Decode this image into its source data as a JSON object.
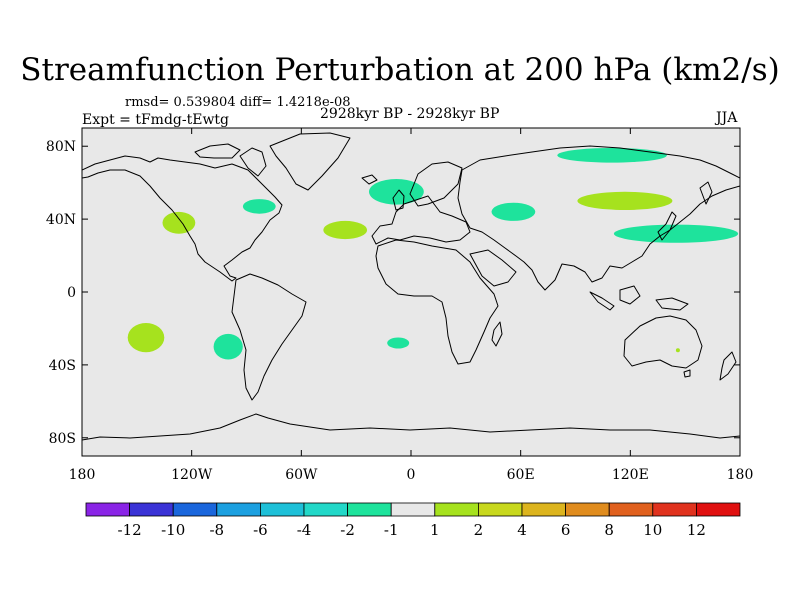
{
  "title": "Streamfunction Perturbation at 200 hPa (km2/s)",
  "stats": "rmsd= 0.539804 diff= 1.4218e-08",
  "expt": "Expt = tFmdg-tEwtg",
  "period": "2928kyr BP - 2928kyr BP",
  "season": "JJA",
  "colors": {
    "ocean": "#e8e8e8",
    "coast": "#000000",
    "neg": "#1ee39c",
    "pos": "#a6e21e"
  },
  "chart_data": {
    "type": "map",
    "projection": "cylindrical-equidistant",
    "lon_range": [
      -180,
      180
    ],
    "lat_range": [
      -90,
      90
    ],
    "y_ticks": [
      {
        "lat": 80,
        "label": "80N"
      },
      {
        "lat": 40,
        "label": "40N"
      },
      {
        "lat": 0,
        "label": "0"
      },
      {
        "lat": -40,
        "label": "40S"
      },
      {
        "lat": -80,
        "label": "80S"
      }
    ],
    "x_ticks": [
      {
        "lon": -180,
        "label": "180"
      },
      {
        "lon": -120,
        "label": "120W"
      },
      {
        "lon": -60,
        "label": "60W"
      },
      {
        "lon": 0,
        "label": "0"
      },
      {
        "lon": 60,
        "label": "60E"
      },
      {
        "lon": 120,
        "label": "120E"
      },
      {
        "lon": 180,
        "label": "180"
      }
    ],
    "colorbar": {
      "colors": [
        "#8a24e6",
        "#3b33d6",
        "#1a66dc",
        "#1ca0e0",
        "#1ec0d8",
        "#22d8c8",
        "#1ee39c",
        "#e8e8e8",
        "#a6e21e",
        "#c8d81e",
        "#dcb41e",
        "#e08c1e",
        "#e0601e",
        "#e0321e",
        "#e01010"
      ],
      "labels": [
        "-12",
        "-10",
        "-8",
        "-6",
        "-4",
        "-2",
        "-1",
        "1",
        "2",
        "4",
        "6",
        "8",
        "10",
        "12"
      ]
    },
    "anomalies": [
      {
        "sign": "neg",
        "level": "-1",
        "region": "Arctic Siberia",
        "lon": 110,
        "lat": 75,
        "dlon": 30,
        "dlat": 4
      },
      {
        "sign": "neg",
        "level": "-1",
        "region": "North Atlantic / Britain",
        "lon": -8,
        "lat": 55,
        "dlon": 15,
        "dlat": 7
      },
      {
        "sign": "neg",
        "level": "-1",
        "region": "Eastern North America",
        "lon": -83,
        "lat": 47,
        "dlon": 9,
        "dlat": 4
      },
      {
        "sign": "neg",
        "level": "-1",
        "region": "Caspian / Central Asia",
        "lon": 56,
        "lat": 44,
        "dlon": 12,
        "dlat": 5
      },
      {
        "sign": "neg",
        "level": "-1",
        "region": "East Asia / NW Pacific",
        "lon": 145,
        "lat": 32,
        "dlon": 34,
        "dlat": 5
      },
      {
        "sign": "neg",
        "level": "-1",
        "region": "South Pacific",
        "lon": -100,
        "lat": -30,
        "dlon": 8,
        "dlat": 7
      },
      {
        "sign": "neg",
        "level": "-1",
        "region": "South Atlantic",
        "lon": -7,
        "lat": -28,
        "dlon": 6,
        "dlat": 3
      },
      {
        "sign": "pos",
        "level": "2",
        "region": "NE Pacific",
        "lon": -127,
        "lat": 38,
        "dlon": 9,
        "dlat": 6
      },
      {
        "sign": "pos",
        "level": "2",
        "region": "North Atlantic",
        "lon": -36,
        "lat": 34,
        "dlon": 12,
        "dlat": 5
      },
      {
        "sign": "pos",
        "level": "2",
        "region": "Mongolia / NE China",
        "lon": 117,
        "lat": 50,
        "dlon": 26,
        "dlat": 5
      },
      {
        "sign": "pos",
        "level": "2",
        "region": "Southern Pacific",
        "lon": -145,
        "lat": -25,
        "dlon": 10,
        "dlat": 8
      },
      {
        "sign": "pos",
        "level": "2",
        "region": "Australia",
        "lon": 146,
        "lat": -32,
        "dlon": 1,
        "dlat": 1
      }
    ]
  }
}
